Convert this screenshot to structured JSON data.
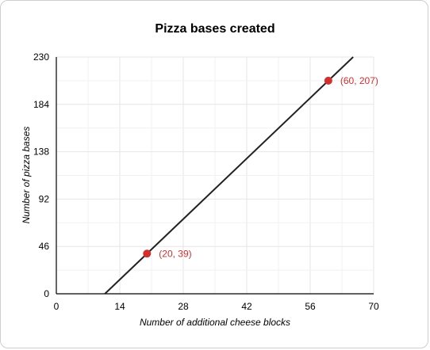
{
  "chart_data": {
    "type": "line",
    "title": "Pizza bases created",
    "xlabel": "Number of additional cheese blocks",
    "ylabel": "Number of pizza bases",
    "xlim": [
      0,
      70
    ],
    "ylim": [
      0,
      230
    ],
    "x_ticks": [
      0,
      14,
      28,
      42,
      56,
      70
    ],
    "y_ticks": [
      0,
      46,
      92,
      138,
      184,
      230
    ],
    "grid": true,
    "legend": "none",
    "line": {
      "slope": 4.2,
      "intercept": -45,
      "x_range": [
        10.714,
        65.476
      ],
      "color": "#222222"
    },
    "points": [
      {
        "x": 20,
        "y": 39,
        "label": "(20, 39)"
      },
      {
        "x": 60,
        "y": 207,
        "label": "(60, 207)"
      }
    ],
    "point_color": "#d32f2f"
  }
}
